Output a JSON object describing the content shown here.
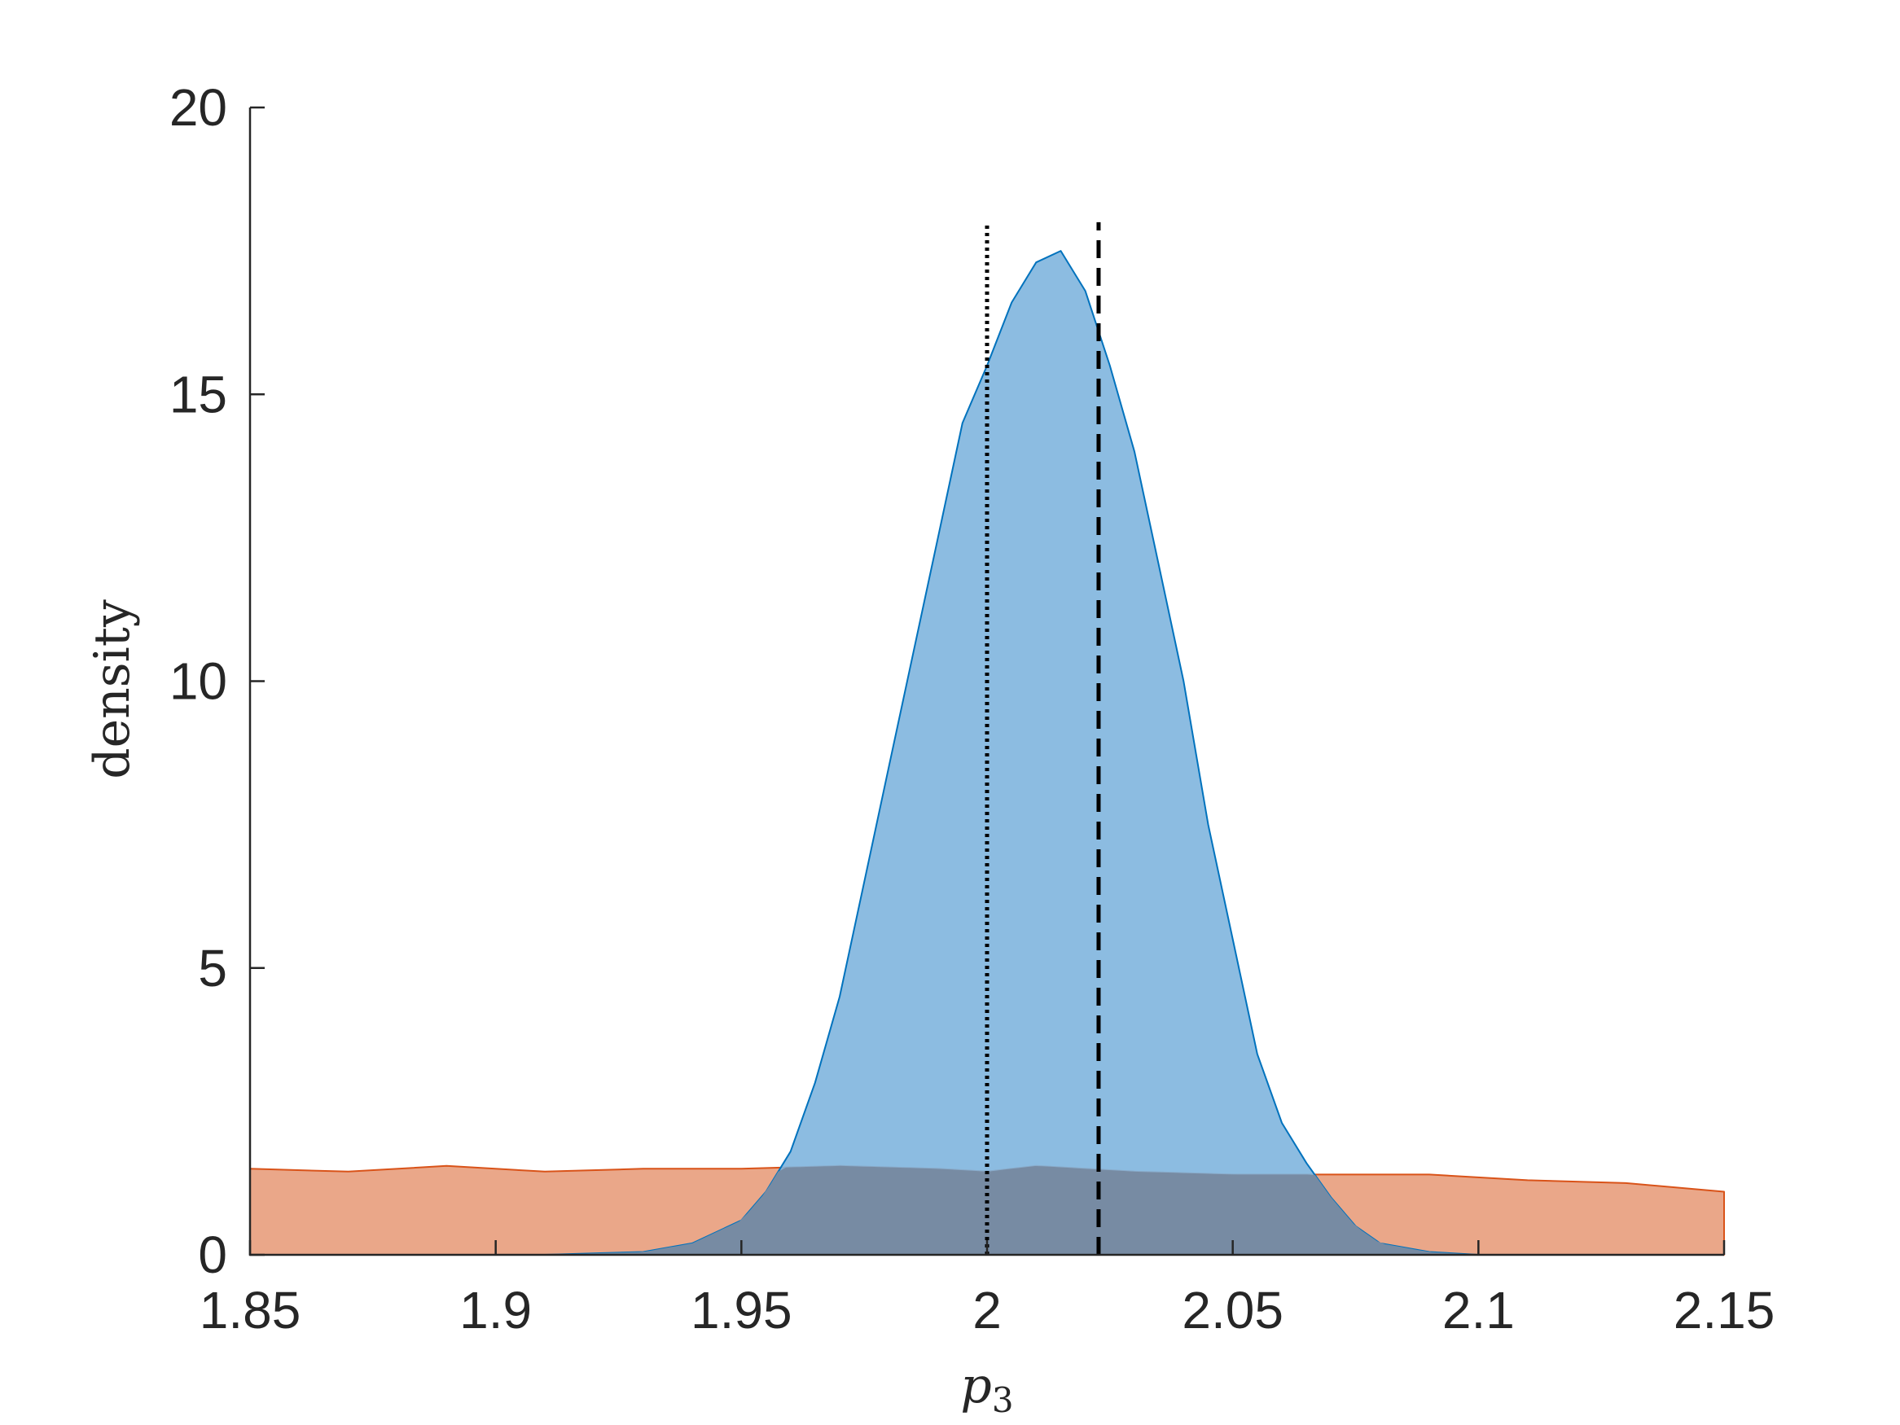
{
  "chart_data": {
    "type": "area",
    "title": "",
    "xlabel": "p",
    "xlabel_subscript": "3",
    "ylabel": "density",
    "xlim": [
      1.85,
      2.15
    ],
    "ylim": [
      0,
      20
    ],
    "xticks": [
      1.85,
      1.9,
      1.95,
      2,
      2.05,
      2.1,
      2.15
    ],
    "xtick_labels": [
      "1.85",
      "1.9",
      "1.95",
      "2",
      "2.05",
      "2.1",
      "2.15"
    ],
    "yticks": [
      0,
      5,
      10,
      15,
      20
    ],
    "ytick_labels": [
      "0",
      "5",
      "10",
      "15",
      "20"
    ],
    "grid": false,
    "legend": "none",
    "series": [
      {
        "color": "#D95319",
        "fill_color": "#EAA789",
        "x": [
          1.85,
          1.87,
          1.89,
          1.91,
          1.93,
          1.95,
          1.97,
          1.99,
          2.0,
          2.01,
          2.03,
          2.05,
          2.07,
          2.09,
          2.11,
          2.13,
          2.15
        ],
        "values": [
          1.5,
          1.45,
          1.55,
          1.45,
          1.5,
          1.5,
          1.55,
          1.5,
          1.45,
          1.55,
          1.45,
          1.4,
          1.4,
          1.4,
          1.3,
          1.25,
          1.1
        ]
      },
      {
        "color": "#0072BD",
        "fill_color": "#7FB5DE",
        "x": [
          1.91,
          1.93,
          1.94,
          1.95,
          1.955,
          1.96,
          1.965,
          1.97,
          1.975,
          1.98,
          1.985,
          1.99,
          1.995,
          2.0,
          2.005,
          2.01,
          2.015,
          2.02,
          2.025,
          2.03,
          2.035,
          2.04,
          2.045,
          2.05,
          2.055,
          2.06,
          2.065,
          2.07,
          2.075,
          2.08,
          2.09,
          2.1
        ],
        "values": [
          0.0,
          0.05,
          0.2,
          0.6,
          1.1,
          1.8,
          3.0,
          4.5,
          6.5,
          8.5,
          10.5,
          12.5,
          14.5,
          15.5,
          16.6,
          17.3,
          17.5,
          16.8,
          15.5,
          14.0,
          12.0,
          10.0,
          7.5,
          5.5,
          3.5,
          2.3,
          1.6,
          1.0,
          0.5,
          0.2,
          0.05,
          0.0
        ]
      }
    ],
    "reference_lines": [
      {
        "x": 2.0,
        "style": "dotted",
        "color": "#000000",
        "ymax": 18
      },
      {
        "x": 2.0227,
        "style": "dashed",
        "color": "#000000",
        "ymax": 18
      }
    ]
  }
}
